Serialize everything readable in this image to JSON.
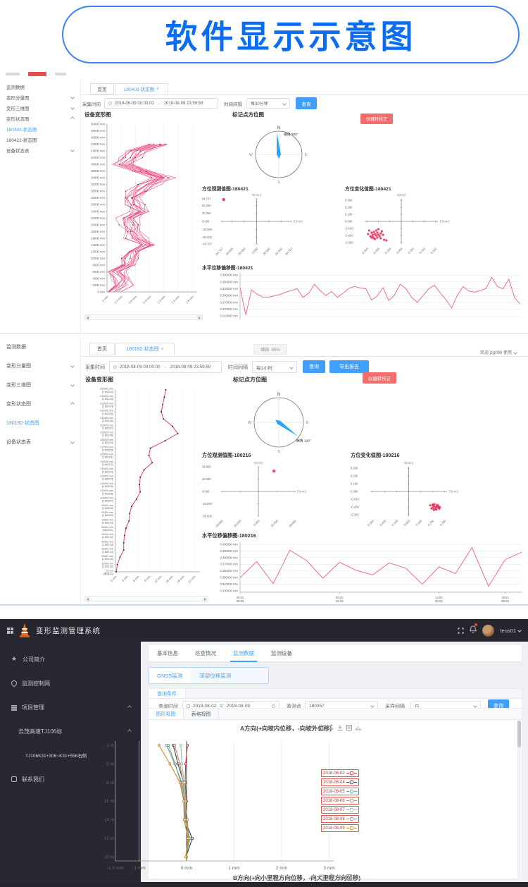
{
  "banner": {
    "title": "软件显示示意图"
  },
  "shot1": {
    "sidebar": {
      "items": [
        {
          "label": "监测数据"
        },
        {
          "label": "变形分量图",
          "chevron": "down"
        },
        {
          "label": "变形三维图",
          "chevron": "down"
        },
        {
          "label": "变形状态图",
          "chevron": "up"
        },
        {
          "label": "180403-状态图",
          "active": true
        },
        {
          "label": "180422-状态图"
        },
        {
          "label": "设备状态表",
          "chevron": "down"
        }
      ]
    },
    "tabs": {
      "home": "首页",
      "active": "180403-状态图",
      "close": "×"
    },
    "filter": {
      "time_label": "采集时间",
      "start": "2018-08-09 00:00:00",
      "sep": "→",
      "end": "2018-08-09 23:59:59",
      "interval_label": "时间间隔",
      "interval": "每30分钟",
      "query": "查询"
    },
    "calib": "仪器转校正",
    "titles": {
      "deform": "设备变形图",
      "compass": "标记点方位图",
      "obs": "方位观测值图-180421",
      "change": "方位变化值图-180421",
      "offset": "水平位移偏移图-180421"
    }
  },
  "shot2": {
    "sidebar": {
      "items": [
        {
          "label": "监测数据"
        },
        {
          "label": "变形分量图",
          "chevron": "down"
        },
        {
          "label": "变形三维图",
          "chevron": "down"
        },
        {
          "label": "变形状态图",
          "chevron": "up"
        },
        {
          "label": "180192-状态图",
          "active": true
        },
        {
          "label": "设备状态表",
          "chevron": "down"
        }
      ]
    },
    "tabs": {
      "home": "首页",
      "active": "180192-状态图",
      "close": "×"
    },
    "zoom_badge": "缩放: 95%",
    "welcome": "欢迎 jzg090 使用",
    "filter": {
      "time_label": "采集时间",
      "start": "2018-08-09 00:00:00",
      "sep": "→",
      "end": "2018-08-09 23:59:59",
      "interval_label": "时间间隔",
      "interval": "每1小时",
      "query": "查询",
      "export": "导出报告"
    },
    "calib": "仪器转校正",
    "titles": {
      "deform": "设备变形图",
      "compass": "标记点方位图",
      "obs": "方位观测值图-180216",
      "change": "方位变化值图-180216",
      "offset": "水平位移偏移图-180216"
    }
  },
  "shot3": {
    "navbar": {
      "title": "变形监测管理系统",
      "user": "teus01"
    },
    "sidebar": {
      "items": [
        {
          "label": "公司简介",
          "icon": "star"
        },
        {
          "label": "监测控制网",
          "icon": "pin"
        },
        {
          "label": "项目管理",
          "icon": "list",
          "chevron": "up"
        },
        {
          "label": "云茂高速TJ106标",
          "indent": 1,
          "chevron": "up"
        },
        {
          "label": "TJ106K31+306~K31+556右侧",
          "indent": 2,
          "small": true
        },
        {
          "label": "联系我们",
          "icon": "phone"
        }
      ]
    },
    "tabs": [
      {
        "label": "基本信息"
      },
      {
        "label": "巡查情况"
      },
      {
        "label": "监测数据",
        "active": true
      },
      {
        "label": "监测设备"
      }
    ],
    "subtabs": [
      {
        "label": "GNSS监测",
        "active": true
      },
      {
        "label": "深部位移监测"
      }
    ],
    "query": {
      "panel": "查询条件",
      "time_label": "查询时间",
      "start": "2018-08-02",
      "to": "至",
      "end": "2018-08-09",
      "point_label": "监测点",
      "point": "180357",
      "interval_label": "采样间隔",
      "interval": "日",
      "query": "查询"
    },
    "view_tabs": [
      {
        "label": "图形视图",
        "active": true
      },
      {
        "label": "表格视图"
      }
    ],
    "b_title": "B方向(+向小里程方向位移，-向大里程方向位移)"
  },
  "chart_data": {
    "device_deform_180403": {
      "type": "band",
      "title": "设备变形图",
      "y_max": 50000,
      "y_step": 2000,
      "y_unit": "mm",
      "x_ticks": [
        "0 mm",
        "0.3 mm",
        "0.6 mm",
        "0.9 mm",
        "1.2 mm",
        "1.5 mm",
        "1.8 mm"
      ],
      "x_vals": [
        0,
        0.3,
        0.6,
        0.9,
        1.2,
        1.5,
        1.8
      ],
      "x_max": 1.9,
      "heights": [
        0,
        2000,
        4000,
        6000,
        8000,
        10000,
        12000,
        14000,
        16000,
        18000,
        20000,
        22000,
        24000,
        26000,
        28000,
        30000,
        32000,
        34000,
        36000,
        38000,
        40000,
        42000,
        44000
      ],
      "profile": [
        0.1,
        0.3,
        0.32,
        0.18,
        0.42,
        0.5,
        0.55,
        0.85,
        0.62,
        0.55,
        0.5,
        0.47,
        0.72,
        0.55,
        0.52,
        0.65,
        0.85,
        1.15,
        0.75,
        0.35,
        0.5,
        0.65,
        1.1
      ],
      "lines": 14,
      "spread": 0.3,
      "color": "#ee3f76"
    },
    "compass_180403": {
      "type": "compass",
      "bearing": 355,
      "label": "偏角 355°",
      "n": "N",
      "e": "E",
      "s": "S",
      "w": "W"
    },
    "azimuth_obs_180421": {
      "type": "cross",
      "n_label": "N(mm)",
      "e_label": "E(mm)",
      "range": 84.767,
      "ticks": [
        "84.767",
        "60.000",
        "30.000",
        "0.000",
        "-30.000",
        "-60.000",
        "-84.767"
      ],
      "tick_vals": [
        84.767,
        60,
        30,
        0,
        -30,
        -60,
        -84.767
      ],
      "points": [
        [
          -80,
          82
        ]
      ],
      "color": "#e8335f"
    },
    "azimuth_change_180421": {
      "type": "cross",
      "n_label": "N(mm)",
      "e_label": "E(mm)",
      "range": 0.32,
      "ticks": [
        "0.300",
        "0.200",
        "0.100",
        "0.000",
        "-0.100",
        "-0.200",
        "-0.300"
      ],
      "tick_vals": [
        0.3,
        0.2,
        0.1,
        0,
        -0.1,
        -0.2,
        -0.3
      ],
      "points": [
        [
          -0.28,
          -0.13
        ],
        [
          -0.26,
          -0.16
        ],
        [
          -0.25,
          -0.19
        ],
        [
          -0.27,
          -0.21
        ],
        [
          -0.24,
          -0.15
        ],
        [
          -0.23,
          -0.18
        ],
        [
          -0.22,
          -0.2
        ],
        [
          -0.25,
          -0.22
        ],
        [
          -0.21,
          -0.16
        ],
        [
          -0.2,
          -0.19
        ],
        [
          -0.24,
          -0.24
        ],
        [
          -0.22,
          -0.13
        ],
        [
          -0.19,
          -0.21
        ],
        [
          -0.18,
          -0.17
        ],
        [
          -0.26,
          -0.23
        ],
        [
          -0.23,
          -0.25
        ],
        [
          -0.17,
          -0.14
        ],
        [
          -0.29,
          -0.18
        ],
        [
          -0.21,
          -0.23
        ],
        [
          -0.16,
          -0.19
        ],
        [
          -0.15,
          -0.26
        ],
        [
          -0.18,
          -0.24
        ],
        [
          -0.2,
          -0.11
        ],
        [
          -0.13,
          -0.27
        ]
      ],
      "color": "#e8335f"
    },
    "horizontal_offset_180421": {
      "type": "line",
      "y_ticks": [
        "0.390000 mm",
        "0.360000 mm",
        "0.330000 mm",
        "0.300000 mm",
        "0.270000 mm",
        "0.240000 mm",
        "0.210000 mm"
      ],
      "y_tick_vals": [
        0.39,
        0.36,
        0.33,
        0.3,
        0.27,
        0.24,
        0.21
      ],
      "y_min": 0.195,
      "y_max": 0.4,
      "values": [
        0.335,
        0.215,
        0.325,
        0.305,
        0.293,
        0.293,
        0.298,
        0.305,
        0.315,
        0.322,
        0.33,
        0.292,
        0.31,
        0.35,
        0.322,
        0.3,
        0.318,
        0.292,
        0.31,
        0.332,
        0.34,
        0.334,
        0.33,
        0.28,
        0.298,
        0.335,
        0.278,
        0.302,
        0.35,
        0.33,
        0.292,
        0.27,
        0.3,
        0.33,
        0.345,
        0.312,
        0.282,
        0.245,
        0.302,
        0.34,
        0.32,
        0.315,
        0.322,
        0.332,
        0.38,
        0.34,
        0.33,
        0.372,
        0.29,
        0.262
      ],
      "color": "#ee6e96"
    },
    "device_deform_180192": {
      "type": "profile",
      "title": "设备变形图",
      "y_max": 25000,
      "y_step": 1000,
      "y_unit": "mm",
      "ids": [
        "180192",
        "180193",
        "180194",
        "180195",
        "180196",
        "180197",
        "180198",
        "180199",
        "180200",
        "180201",
        "180202",
        "180203",
        "180204",
        "180205",
        "180206",
        "180207",
        "180208",
        "180209",
        "180210",
        "180211",
        "180212",
        "180213",
        "180214",
        "180215",
        "180216",
        "基准点"
      ],
      "x_ticks": [
        "0 mm",
        "3 mm",
        "6 mm",
        "9 mm",
        "12 mm",
        "15 mm",
        "18 mm",
        "21 mm"
      ],
      "x_vals": [
        0,
        3,
        6,
        9,
        12,
        15,
        18,
        21
      ],
      "x_max": 22.5,
      "values_bottom_up": [
        0.2,
        0.5,
        1.2,
        2.2,
        2.2,
        2.4,
        2.8,
        3.6,
        3.8,
        4.3,
        5.6,
        6.6,
        6.4,
        6.6,
        7.6,
        9.8,
        8.9,
        9.3,
        13.2,
        16.6,
        15.2,
        12.8,
        12.2,
        12.6,
        13,
        13.4
      ],
      "color": "#ee3f76"
    },
    "compass_180192": {
      "type": "compass",
      "bearing": 126,
      "label": "偏角 126°",
      "n": "N",
      "e": "E",
      "s": "S",
      "w": "W"
    },
    "azimuth_obs_180216": {
      "type": "cross",
      "n_label": "N(mm)",
      "e_label": "E(mm)",
      "range": 39.855,
      "ticks": [
        "39.855",
        "20.000",
        "0.000",
        "-20.000",
        "-39.855"
      ],
      "tick_vals": [
        39.855,
        20,
        0,
        -20,
        -39.855
      ],
      "points": [
        [
          17,
          33
        ]
      ],
      "color": "#e8335f"
    },
    "azimuth_change_180216": {
      "type": "cross",
      "n_label": "N(mm)",
      "e_label": "E(mm)",
      "range": 0.32,
      "ticks": [
        "0.300",
        "0.200",
        "0.100",
        "0.000",
        "-0.100",
        "-0.200",
        "-0.300"
      ],
      "tick_vals": [
        0.3,
        0.2,
        0.1,
        0,
        -0.1,
        -0.2,
        -0.3
      ],
      "points": [
        [
          0.18,
          -0.18
        ],
        [
          0.2,
          -0.17
        ],
        [
          0.21,
          -0.19
        ],
        [
          0.225,
          -0.205
        ],
        [
          0.235,
          -0.185
        ],
        [
          0.245,
          -0.21
        ],
        [
          0.22,
          -0.225
        ],
        [
          0.2,
          -0.215
        ],
        [
          0.25,
          -0.195
        ],
        [
          0.23,
          -0.235
        ],
        [
          0.21,
          -0.24
        ],
        [
          0.19,
          -0.22
        ],
        [
          0.26,
          -0.205
        ],
        [
          0.24,
          -0.175
        ],
        [
          0.215,
          -0.165
        ],
        [
          0.255,
          -0.225
        ],
        [
          0.205,
          -0.19
        ],
        [
          0.23,
          -0.2
        ]
      ],
      "color": "#e8335f"
    },
    "horizontal_offset_180216": {
      "type": "line",
      "y_ticks": [
        "0.400000 mm",
        "0.390000 mm",
        "0.380000 mm",
        "0.370000 mm",
        "0.360000 mm",
        "0.350000 mm",
        "0.340000 mm",
        "0.330000 mm"
      ],
      "y_tick_vals": [
        0.4,
        0.39,
        0.38,
        0.37,
        0.36,
        0.35,
        0.34,
        0.33
      ],
      "y_min": 0.328,
      "y_max": 0.403,
      "values": [
        0.35,
        0.374,
        0.341,
        0.391,
        0.376,
        0.349,
        0.373,
        0.361,
        0.354,
        0.372,
        0.364,
        0.34,
        0.366,
        0.356,
        0.395,
        0.337,
        0.377,
        0.388
      ],
      "x_ticks": [
        {
          "t1": "00:01",
          "t2": "08-09",
          "i": 0
        },
        {
          "t1": "06:00",
          "t2": "08-09",
          "i": 6
        },
        {
          "t1": "12:00",
          "t2": "08-09",
          "i": 12
        },
        {
          "t1": "16:01",
          "t2": "08-09",
          "i": 16
        }
      ],
      "color": "#ee6e96"
    },
    "a_direction": {
      "type": "depth",
      "title": "A方向(+向坡内位移，-向坡外位移)",
      "depths": [
        2,
        5,
        8,
        11,
        14,
        17,
        20
      ],
      "depth_labels": [
        "2 m",
        "5 m",
        "8 m",
        "11 m",
        "14 m",
        "17 m",
        "20 m"
      ],
      "x_ticks": [
        "-1.5 mm",
        "-1 mm",
        "0 mm",
        "1 mm",
        "2 mm",
        "3 mm"
      ],
      "x_vals": [
        -1.5,
        -1,
        0,
        1,
        2,
        3
      ],
      "series": [
        {
          "name": "2018-08-02",
          "color": "#c23531",
          "values": [
            0.02,
            -0.02,
            -0.03,
            0,
            -0.02,
            0.05,
            0
          ]
        },
        {
          "name": "2018-08-04",
          "color": "#2f4554",
          "values": [
            -0.28,
            -0.18,
            -0.06,
            -0.01,
            -0.04,
            0.12,
            -0.01
          ]
        },
        {
          "name": "2018-08-05",
          "color": "#61a0a8",
          "values": [
            -0.42,
            -0.25,
            -0.1,
            -0.03,
            -0.02,
            0.06,
            -0.01
          ]
        },
        {
          "name": "2018-08-06",
          "color": "#d48265",
          "values": [
            -0.25,
            -0.14,
            -0.07,
            -0.04,
            0.02,
            0.04,
            0
          ]
        },
        {
          "name": "2018-08-07",
          "color": "#91c7ae",
          "values": [
            -0.12,
            -0.1,
            -0.05,
            -0.02,
            -0.05,
            0.03,
            -0.01
          ]
        },
        {
          "name": "2018-08-08",
          "color": "#749f83",
          "values": [
            -0.38,
            -0.24,
            -0.12,
            -0.05,
            -0.03,
            0.07,
            -0.01
          ]
        },
        {
          "name": "2018-08-09",
          "color": "#ca8622",
          "values": [
            -0.58,
            -0.35,
            -0.14,
            -0.06,
            -0.05,
            0.03,
            -0.02
          ]
        }
      ]
    }
  }
}
